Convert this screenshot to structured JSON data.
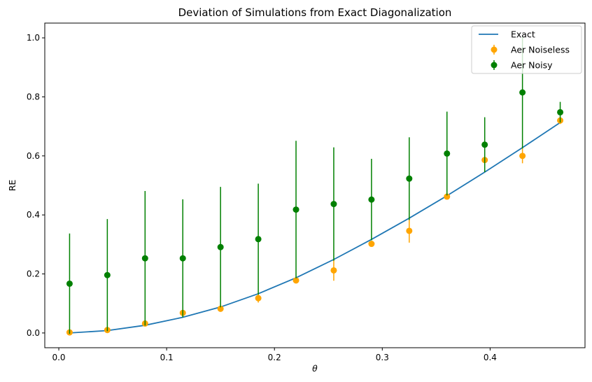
{
  "chart_data": {
    "type": "scatter",
    "title": "Deviation of Simulations from Exact Diagonalization",
    "xlabel": "θ",
    "ylabel": "RE",
    "xlim": [
      -0.013,
      0.488
    ],
    "ylim": [
      -0.05,
      1.05
    ],
    "xticks": [
      0.0,
      0.1,
      0.2,
      0.3,
      0.4
    ],
    "xtick_labels": [
      "0.0",
      "0.1",
      "0.2",
      "0.3",
      "0.4"
    ],
    "yticks": [
      0.0,
      0.2,
      0.4,
      0.6,
      0.8,
      1.0
    ],
    "ytick_labels": [
      "0.0",
      "0.2",
      "0.4",
      "0.6",
      "0.8",
      "1.0"
    ],
    "grid": false,
    "legend_position": "top-right",
    "series": [
      {
        "name": "Exact",
        "kind": "line",
        "color": "#1f77b4",
        "x": [
          0.01,
          0.045,
          0.08,
          0.115,
          0.15,
          0.185,
          0.22,
          0.255,
          0.29,
          0.325,
          0.36,
          0.395,
          0.43,
          0.465
        ],
        "y": [
          0.0,
          0.008,
          0.026,
          0.053,
          0.088,
          0.133,
          0.187,
          0.249,
          0.317,
          0.389,
          0.465,
          0.545,
          0.628,
          0.713
        ]
      },
      {
        "name": "Aer Noiseless",
        "kind": "errorbar",
        "color": "#ffa500",
        "x": [
          0.01,
          0.045,
          0.08,
          0.115,
          0.15,
          0.185,
          0.22,
          0.255,
          0.29,
          0.325,
          0.36,
          0.395,
          0.43,
          0.465
        ],
        "y": [
          0.002,
          0.01,
          0.032,
          0.068,
          0.082,
          0.118,
          0.178,
          0.212,
          0.302,
          0.346,
          0.462,
          0.586,
          0.6,
          0.72
        ],
        "yerr": [
          0.004,
          0.005,
          0.005,
          0.01,
          0.007,
          0.015,
          0.007,
          0.035,
          0.007,
          0.04,
          0.008,
          0.01,
          0.025,
          0.012
        ]
      },
      {
        "name": "Aer Noisy",
        "kind": "errorbar",
        "color": "#008000",
        "x": [
          0.01,
          0.045,
          0.08,
          0.115,
          0.15,
          0.185,
          0.22,
          0.255,
          0.29,
          0.325,
          0.36,
          0.395,
          0.43,
          0.465
        ],
        "y": [
          0.167,
          0.196,
          0.253,
          0.253,
          0.291,
          0.318,
          0.418,
          0.437,
          0.452,
          0.523,
          0.608,
          0.638,
          0.815,
          0.748
        ],
        "yerr": [
          0.17,
          0.19,
          0.228,
          0.2,
          0.204,
          0.188,
          0.233,
          0.192,
          0.138,
          0.14,
          0.142,
          0.093,
          0.19,
          0.035
        ]
      }
    ]
  }
}
